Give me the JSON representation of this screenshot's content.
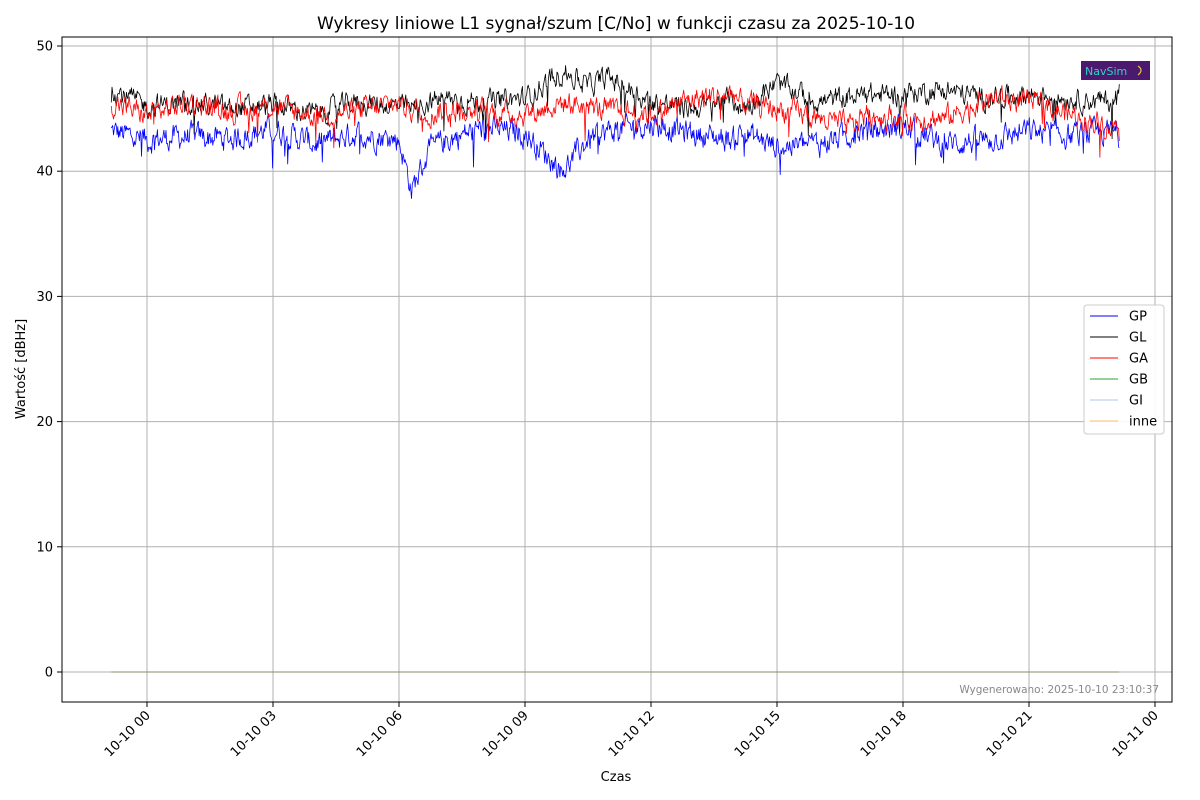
{
  "chart_data": {
    "type": "line",
    "title": "Wykresy liniowe L1 sygnał/szum [C/No] w funkcji czasu za 2025-10-10",
    "xlabel": "Czas",
    "ylabel": "Wartość [dBHz]",
    "x_range": [
      "2025-10-09 22:00",
      "2025-10-11 00:40"
    ],
    "ylim": [
      -2.5,
      51
    ],
    "grid": true,
    "legend_position": "center-right",
    "x_ticks": [
      "10-10 00",
      "10-10 03",
      "10-10 06",
      "10-10 09",
      "10-10 12",
      "10-10 15",
      "10-10 18",
      "10-10 21",
      "10-11 00"
    ],
    "y_ticks": [
      "0",
      "10",
      "20",
      "30",
      "40",
      "50"
    ],
    "x_time_hours": [
      -0.85,
      0.0,
      1.0,
      2.0,
      3.0,
      4.0,
      5.0,
      6.0,
      6.3,
      6.7,
      7.0,
      8.0,
      9.0,
      9.9,
      10.5,
      11.0,
      12.0,
      13.0,
      14.0,
      14.1,
      15.0,
      16.0,
      16.8,
      17.0,
      18.0,
      19.0,
      20.0,
      21.0,
      22.0,
      23.0,
      23.15
    ],
    "series": [
      {
        "name": "GP",
        "color": "#0000ff",
        "values": [
          43.2,
          42.5,
          42.8,
          42.6,
          43.4,
          42.2,
          43.0,
          42.5,
          38.5,
          41.5,
          42.3,
          43.5,
          43.0,
          40.0,
          42.5,
          43.2,
          43.8,
          43.0,
          42.5,
          43.2,
          42.0,
          42.2,
          43.0,
          43.2,
          43.5,
          42.2,
          42.5,
          43.2,
          42.8,
          43.2,
          42.7
        ]
      },
      {
        "name": "GL",
        "color": "#000000",
        "values": [
          46.5,
          45.2,
          45.5,
          45.0,
          45.3,
          44.6,
          45.5,
          45.2,
          45.0,
          45.5,
          45.8,
          45.5,
          45.8,
          48.0,
          46.8,
          47.5,
          45.5,
          45.0,
          45.8,
          44.8,
          47.0,
          45.5,
          46.0,
          46.0,
          46.2,
          46.5,
          45.8,
          46.2,
          45.8,
          45.5,
          46.5
        ]
      },
      {
        "name": "GA",
        "color": "#ff0000",
        "values": [
          45.5,
          44.5,
          45.5,
          44.8,
          45.2,
          44.5,
          44.8,
          45.5,
          45.0,
          44.5,
          44.8,
          44.8,
          44.5,
          45.5,
          45.2,
          44.8,
          44.6,
          45.8,
          46.2,
          45.5,
          45.0,
          44.2,
          43.5,
          44.5,
          44.3,
          44.2,
          45.8,
          45.5,
          44.5,
          43.5,
          45.0
        ]
      },
      {
        "name": "GB",
        "color": "#2ca02c",
        "values": [
          0,
          0
        ]
      },
      {
        "name": "GI",
        "color": "#aec7e8",
        "values": [
          0,
          0
        ]
      },
      {
        "name": "inne",
        "color": "#ffbb78",
        "values": [
          0,
          0
        ]
      }
    ],
    "footnote": "Wygenerowano: 2025-10-10 23:10:37",
    "logo_text": "NavSim"
  }
}
